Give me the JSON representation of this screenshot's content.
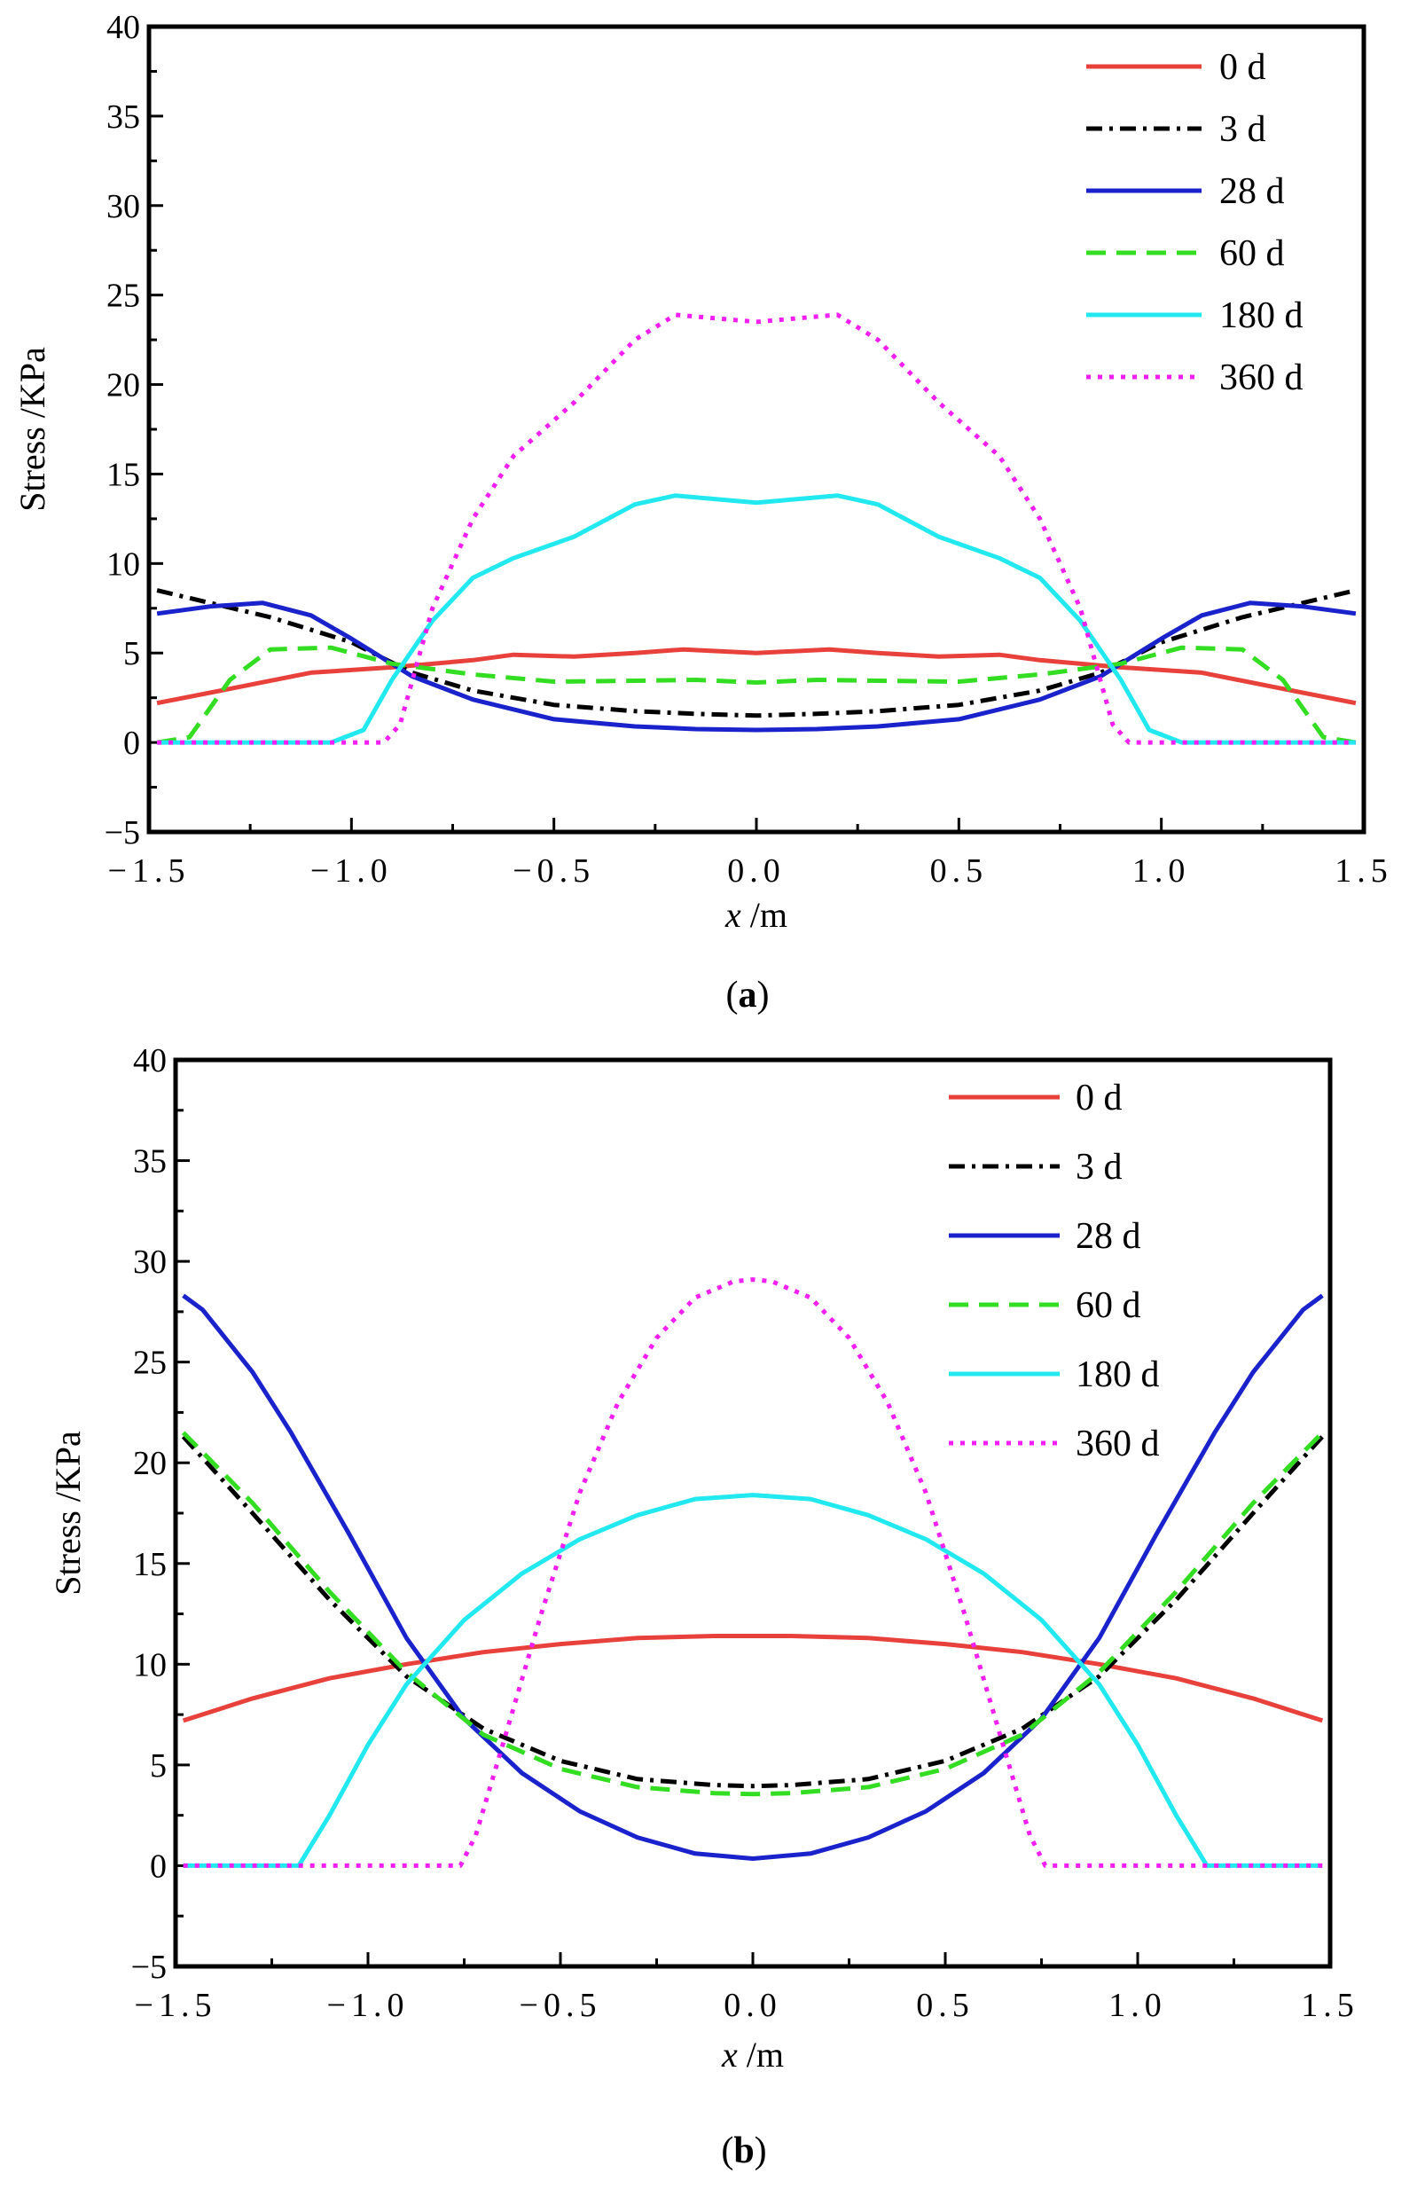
{
  "chart_data": [
    {
      "id": "a",
      "type": "line",
      "caption_letter": "a",
      "caption_open": "(",
      "caption_close": ")",
      "xlabel_var": "x",
      "xlabel_unit": " /m",
      "ylabel": "Stress /KPa",
      "xlim": [
        -1.5,
        1.5
      ],
      "ylim": [
        -5,
        40
      ],
      "xticks": [
        -1.5,
        -1.0,
        -0.5,
        0.0,
        0.5,
        1.0,
        1.5
      ],
      "xtick_labels": [
        "−1.5",
        "−1.0",
        "−0.5",
        "0.0",
        "0.5",
        "1.0",
        "1.5"
      ],
      "yticks": [
        -5,
        0,
        5,
        10,
        15,
        20,
        25,
        30,
        35,
        40
      ],
      "ytick_labels": [
        "−5",
        "0",
        "5",
        "10",
        "15",
        "20",
        "25",
        "30",
        "35",
        "40"
      ],
      "legend_position": "top-right",
      "series": [
        {
          "name": "0 d",
          "color": "#e8413c",
          "style": "solid",
          "x": [
            -1.48,
            -1.3,
            -1.1,
            -0.9,
            -0.7,
            -0.6,
            -0.45,
            -0.3,
            -0.18,
            0.0,
            0.18,
            0.3,
            0.45,
            0.6,
            0.7,
            0.9,
            1.1,
            1.3,
            1.48
          ],
          "y": [
            2.2,
            3.0,
            3.9,
            4.2,
            4.6,
            4.9,
            4.8,
            5.0,
            5.2,
            5.0,
            5.2,
            5.0,
            4.8,
            4.9,
            4.6,
            4.2,
            3.9,
            3.0,
            2.2
          ]
        },
        {
          "name": "3 d",
          "color": "#000000",
          "style": "dashdot",
          "x": [
            -1.48,
            -1.2,
            -1.0,
            -0.85,
            -0.7,
            -0.5,
            -0.3,
            -0.15,
            0.0,
            0.15,
            0.3,
            0.5,
            0.7,
            0.85,
            1.0,
            1.2,
            1.48
          ],
          "y": [
            8.5,
            7.0,
            5.6,
            3.9,
            2.9,
            2.1,
            1.75,
            1.6,
            1.5,
            1.6,
            1.75,
            2.1,
            2.9,
            3.9,
            5.6,
            7.0,
            8.5
          ]
        },
        {
          "name": "28 d",
          "color": "#1a22cc",
          "style": "solid",
          "x": [
            -1.48,
            -1.35,
            -1.22,
            -1.1,
            -1.0,
            -0.85,
            -0.7,
            -0.5,
            -0.3,
            -0.15,
            0.0,
            0.15,
            0.3,
            0.5,
            0.7,
            0.85,
            1.0,
            1.1,
            1.22,
            1.35,
            1.48
          ],
          "y": [
            7.2,
            7.6,
            7.8,
            7.1,
            5.8,
            3.7,
            2.4,
            1.3,
            0.9,
            0.75,
            0.7,
            0.75,
            0.9,
            1.3,
            2.4,
            3.7,
            5.8,
            7.1,
            7.8,
            7.6,
            7.2
          ]
        },
        {
          "name": "60 d",
          "color": "#33dd22",
          "style": "dashed",
          "x": [
            -1.48,
            -1.4,
            -1.3,
            -1.2,
            -1.05,
            -0.9,
            -0.7,
            -0.5,
            -0.3,
            -0.15,
            0.0,
            0.15,
            0.3,
            0.5,
            0.7,
            0.9,
            1.05,
            1.2,
            1.3,
            1.4,
            1.48
          ],
          "y": [
            0.0,
            0.3,
            3.5,
            5.2,
            5.3,
            4.4,
            3.8,
            3.4,
            3.45,
            3.5,
            3.35,
            3.5,
            3.45,
            3.4,
            3.8,
            4.4,
            5.3,
            5.2,
            3.5,
            0.3,
            0.0
          ]
        },
        {
          "name": "180 d",
          "color": "#22e8f0",
          "style": "solid",
          "x": [
            -1.48,
            -1.05,
            -0.97,
            -0.9,
            -0.8,
            -0.7,
            -0.6,
            -0.45,
            -0.3,
            -0.2,
            -0.1,
            0.0,
            0.1,
            0.2,
            0.3,
            0.45,
            0.6,
            0.7,
            0.8,
            0.9,
            0.97,
            1.05,
            1.48
          ],
          "y": [
            0.0,
            0.0,
            0.7,
            3.5,
            6.8,
            9.2,
            10.3,
            11.5,
            13.3,
            13.8,
            13.6,
            13.4,
            13.6,
            13.8,
            13.3,
            11.5,
            10.3,
            9.2,
            6.8,
            3.5,
            0.7,
            0.0,
            0.0
          ]
        },
        {
          "name": "360 d",
          "color": "#f21ff2",
          "style": "dotted",
          "x": [
            -1.48,
            -0.92,
            -0.88,
            -0.8,
            -0.7,
            -0.6,
            -0.45,
            -0.3,
            -0.2,
            -0.1,
            0.0,
            0.1,
            0.2,
            0.3,
            0.45,
            0.6,
            0.7,
            0.8,
            0.88,
            0.92,
            1.48
          ],
          "y": [
            0.0,
            0.0,
            1.0,
            7.5,
            12.5,
            16.0,
            19.0,
            22.5,
            23.9,
            23.7,
            23.5,
            23.7,
            23.9,
            22.5,
            19.0,
            16.0,
            12.5,
            7.5,
            1.0,
            0.0,
            0.0
          ]
        }
      ]
    },
    {
      "id": "b",
      "type": "line",
      "caption_letter": "b",
      "caption_open": "(",
      "caption_close": ")",
      "xlabel_var": "x",
      "xlabel_unit": " /m",
      "ylabel": "Stress  /KPa",
      "xlim": [
        -1.5,
        1.5
      ],
      "ylim": [
        -5,
        40
      ],
      "xticks": [
        -1.5,
        -1.0,
        -0.5,
        0.0,
        0.5,
        1.0,
        1.5
      ],
      "xtick_labels": [
        "−1.5",
        "−1.0",
        "−0.5",
        "0.0",
        "0.5",
        "1.0",
        "1.5"
      ],
      "yticks": [
        -5,
        0,
        5,
        10,
        15,
        20,
        25,
        30,
        35,
        40
      ],
      "ytick_labels": [
        "−5",
        "0",
        "5",
        "10",
        "15",
        "20",
        "25",
        "30",
        "35",
        "40"
      ],
      "legend_position": "top-right",
      "series": [
        {
          "name": "0 d",
          "color": "#e8413c",
          "style": "solid",
          "x": [
            -1.48,
            -1.3,
            -1.1,
            -0.9,
            -0.7,
            -0.5,
            -0.3,
            -0.1,
            0.0,
            0.1,
            0.3,
            0.5,
            0.7,
            0.9,
            1.1,
            1.3,
            1.48
          ],
          "y": [
            7.2,
            8.3,
            9.3,
            10.0,
            10.6,
            11.0,
            11.3,
            11.4,
            11.4,
            11.4,
            11.3,
            11.0,
            10.6,
            10.0,
            9.3,
            8.3,
            7.2
          ]
        },
        {
          "name": "3 d",
          "color": "#000000",
          "style": "dashdot",
          "x": [
            -1.48,
            -1.3,
            -1.1,
            -0.9,
            -0.7,
            -0.5,
            -0.3,
            -0.1,
            0.0,
            0.1,
            0.3,
            0.5,
            0.7,
            0.9,
            1.1,
            1.3,
            1.48
          ],
          "y": [
            21.3,
            17.5,
            13.2,
            9.4,
            6.8,
            5.2,
            4.3,
            4.0,
            3.95,
            4.0,
            4.3,
            5.2,
            6.8,
            9.4,
            13.2,
            17.5,
            21.3
          ]
        },
        {
          "name": "28 d",
          "color": "#1a22cc",
          "style": "solid",
          "x": [
            -1.48,
            -1.43,
            -1.3,
            -1.2,
            -1.05,
            -0.9,
            -0.75,
            -0.6,
            -0.45,
            -0.3,
            -0.15,
            0.0,
            0.15,
            0.3,
            0.45,
            0.6,
            0.75,
            0.9,
            1.05,
            1.2,
            1.3,
            1.43,
            1.48
          ],
          "y": [
            28.3,
            27.6,
            24.5,
            21.5,
            16.5,
            11.3,
            7.3,
            4.6,
            2.7,
            1.4,
            0.6,
            0.35,
            0.6,
            1.4,
            2.7,
            4.6,
            7.3,
            11.3,
            16.5,
            21.5,
            24.5,
            27.6,
            28.3
          ]
        },
        {
          "name": "60 d",
          "color": "#33dd22",
          "style": "dashed",
          "x": [
            -1.48,
            -1.3,
            -1.1,
            -0.9,
            -0.7,
            -0.5,
            -0.3,
            -0.1,
            0.0,
            0.1,
            0.3,
            0.5,
            0.7,
            0.9,
            1.1,
            1.3,
            1.48
          ],
          "y": [
            21.5,
            18.0,
            13.6,
            9.6,
            6.5,
            4.8,
            3.9,
            3.6,
            3.55,
            3.6,
            3.9,
            4.8,
            6.5,
            9.6,
            13.6,
            18.0,
            21.5
          ]
        },
        {
          "name": "180 d",
          "color": "#22e8f0",
          "style": "solid",
          "x": [
            -1.48,
            -1.18,
            -1.1,
            -1.0,
            -0.9,
            -0.75,
            -0.6,
            -0.45,
            -0.3,
            -0.15,
            0.0,
            0.15,
            0.3,
            0.45,
            0.6,
            0.75,
            0.9,
            1.0,
            1.1,
            1.18,
            1.48
          ],
          "y": [
            0.0,
            0.0,
            2.5,
            6.0,
            9.0,
            12.2,
            14.5,
            16.2,
            17.4,
            18.2,
            18.4,
            18.2,
            17.4,
            16.2,
            14.5,
            12.2,
            9.0,
            6.0,
            2.5,
            0.0,
            0.0
          ]
        },
        {
          "name": "360 d",
          "color": "#f21ff2",
          "style": "dotted",
          "x": [
            -1.48,
            -0.76,
            -0.72,
            -0.65,
            -0.55,
            -0.45,
            -0.35,
            -0.25,
            -0.15,
            -0.05,
            0.0,
            0.05,
            0.15,
            0.25,
            0.35,
            0.45,
            0.55,
            0.65,
            0.72,
            0.76,
            1.48
          ],
          "y": [
            0.0,
            0.0,
            1.5,
            6.0,
            12.5,
            18.5,
            23.0,
            26.2,
            28.2,
            29.0,
            29.1,
            29.0,
            28.2,
            26.2,
            23.0,
            18.5,
            12.5,
            6.0,
            1.5,
            0.0,
            0.0
          ]
        }
      ]
    }
  ]
}
